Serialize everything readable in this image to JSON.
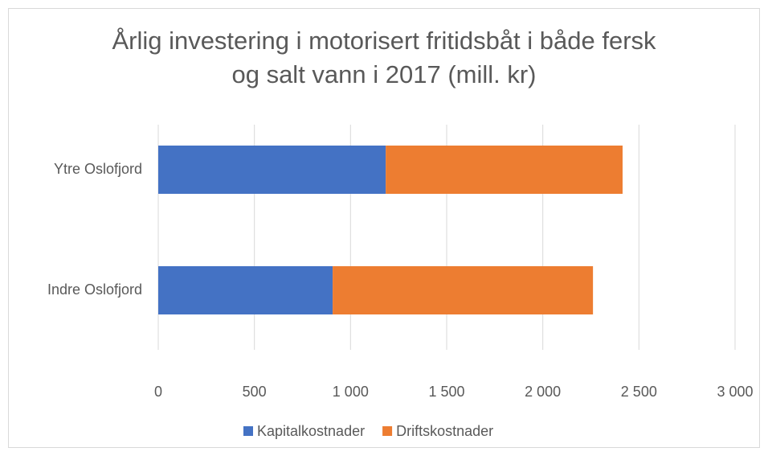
{
  "chart_data": {
    "type": "stacked_bar_horizontal",
    "title": "Årlig investering i motorisert fritidsbåt i både fersk og salt vann i 2017 (mill. kr)",
    "categories": [
      "Ytre Oslofjord",
      "Indre Oslofjord"
    ],
    "series": [
      {
        "name": "Kapitalkostnader",
        "color": "#4472c4",
        "values": [
          1183,
          907
        ]
      },
      {
        "name": "Driftskostnader",
        "color": "#ed7d31",
        "values": [
          1232,
          1354
        ]
      }
    ],
    "xlim": [
      0,
      3000
    ],
    "xticks": [
      0,
      500,
      {
        "value": 1000,
        "label": "1 000"
      },
      {
        "value": 1500,
        "label": "1 500"
      },
      {
        "value": 2000,
        "label": "2 000"
      },
      {
        "value": 2500,
        "label": "2 500"
      },
      {
        "value": 3000,
        "label": "3 000"
      }
    ],
    "grid": true,
    "legend": "bottom"
  }
}
